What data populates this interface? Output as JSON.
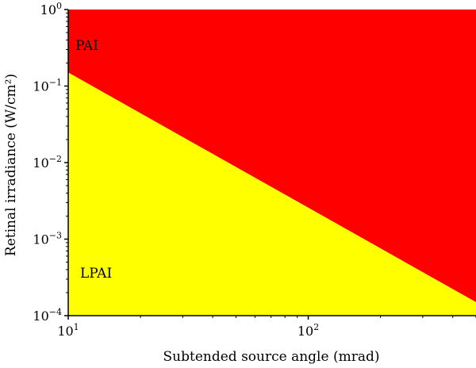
{
  "chart_data": {
    "type": "area",
    "xlabel": "Subtended source angle (mrad)",
    "ylabel": "Retinal irradiance (W/cm²)",
    "xscale": "log",
    "yscale": "log",
    "xlim": [
      10,
      500
    ],
    "ylim": [
      0.0001,
      1
    ],
    "grid": false,
    "legend": "none",
    "boundary": {
      "x": [
        10,
        500
      ],
      "y": [
        0.15,
        0.00015
      ]
    },
    "regions": [
      {
        "name": "PAI",
        "position": "above boundary",
        "color": "#ff0000"
      },
      {
        "name": "LPAI",
        "position": "below boundary",
        "color": "#ffff00"
      }
    ],
    "xticks": [
      {
        "value": 10,
        "base": "10",
        "exp": "1"
      },
      {
        "value": 100,
        "base": "10",
        "exp": "2"
      }
    ],
    "yticks": [
      {
        "value": 1,
        "base": "10",
        "exp": "0"
      },
      {
        "value": 0.1,
        "base": "10",
        "exp": "−1"
      },
      {
        "value": 0.01,
        "base": "10",
        "exp": "−2"
      },
      {
        "value": 0.001,
        "base": "10",
        "exp": "−3"
      },
      {
        "value": 0.0001,
        "base": "10",
        "exp": "−4"
      }
    ]
  }
}
